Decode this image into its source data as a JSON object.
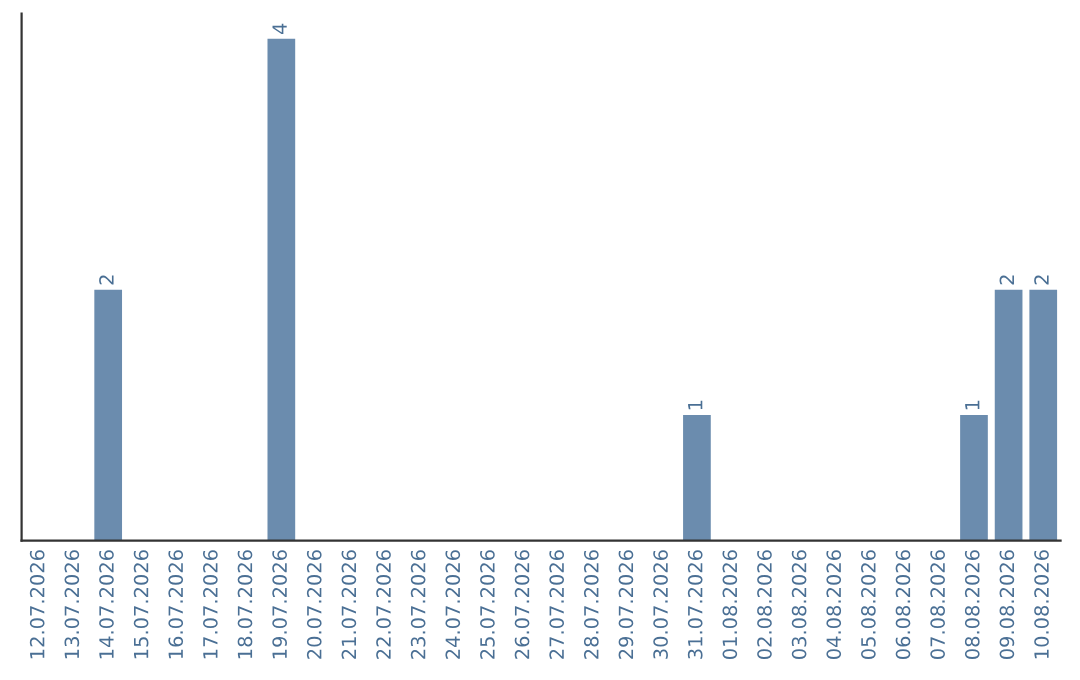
{
  "chart_data": {
    "type": "bar",
    "categories": [
      "12.07.2026",
      "13.07.2026",
      "14.07.2026",
      "15.07.2026",
      "16.07.2026",
      "17.07.2026",
      "18.07.2026",
      "19.07.2026",
      "20.07.2026",
      "21.07.2026",
      "22.07.2026",
      "23.07.2026",
      "24.07.2026",
      "25.07.2026",
      "26.07.2026",
      "27.07.2026",
      "28.07.2026",
      "29.07.2026",
      "30.07.2026",
      "31.07.2026",
      "01.08.2026",
      "02.08.2026",
      "03.08.2026",
      "04.08.2026",
      "05.08.2026",
      "06.08.2026",
      "07.08.2026",
      "08.08.2026",
      "09.08.2026",
      "10.08.2026"
    ],
    "values": [
      0,
      0,
      2,
      0,
      0,
      0,
      0,
      4,
      0,
      0,
      0,
      0,
      0,
      0,
      0,
      0,
      0,
      0,
      0,
      1,
      0,
      0,
      0,
      0,
      0,
      0,
      0,
      1,
      2,
      2
    ],
    "value_labels": [
      null,
      null,
      "2",
      null,
      null,
      null,
      null,
      "4",
      null,
      null,
      null,
      null,
      null,
      null,
      null,
      null,
      null,
      null,
      null,
      "1",
      null,
      null,
      null,
      null,
      null,
      null,
      null,
      "1",
      "2",
      "2"
    ],
    "color": "#6b8cae",
    "ylim": [
      0,
      4.2
    ],
    "tick_labels": "x",
    "grid": false,
    "legend": false
  }
}
